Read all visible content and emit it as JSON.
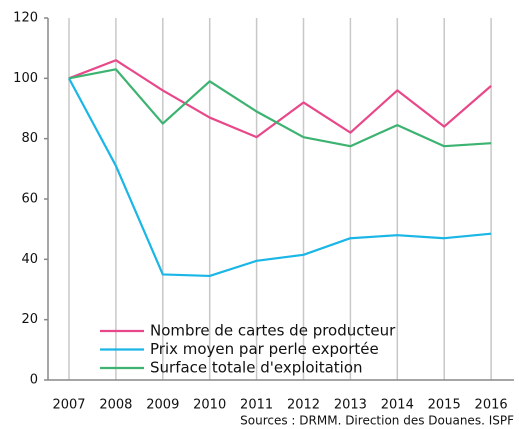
{
  "chart_data": {
    "type": "line",
    "categories": [
      "2007",
      "2008",
      "2009",
      "2010",
      "2011",
      "2012",
      "2013",
      "2014",
      "2015",
      "2016"
    ],
    "series": [
      {
        "name": "Nombre de cartes de producteur",
        "color": "#e8488a",
        "values": [
          100,
          106,
          96,
          87,
          80.5,
          92,
          82,
          96,
          84,
          97.5
        ]
      },
      {
        "name": "Prix moyen par perle exportée",
        "color": "#1ab6e6",
        "values": [
          100,
          71,
          35,
          34.5,
          39.5,
          41.5,
          47,
          48,
          47,
          48.5
        ]
      },
      {
        "name": "Surface totale d'exploitation",
        "color": "#3cb370",
        "values": [
          100,
          103,
          85,
          99,
          89,
          80.5,
          77.5,
          84.5,
          77.5,
          78.5
        ]
      }
    ],
    "ylim": [
      0,
      120
    ],
    "yticks": [
      0,
      20,
      40,
      60,
      80,
      100,
      120
    ],
    "annotation": "Sources : DRMM. Direction des Douanes. ISPF",
    "legend": "lower left"
  }
}
